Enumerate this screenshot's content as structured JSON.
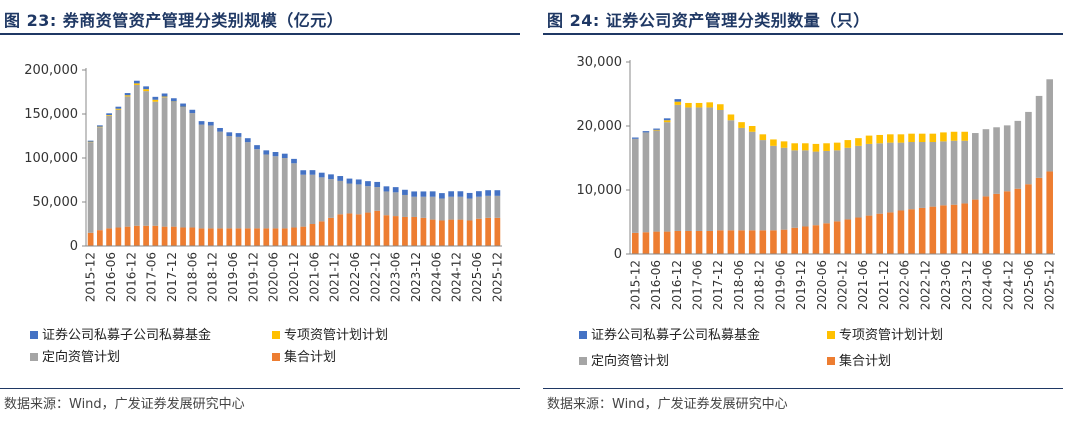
{
  "colors": {
    "private_fund": "#4472c4",
    "special": "#ffc000",
    "directional": "#a5a5a5",
    "collective": "#ed7d31",
    "title": "#1f3864"
  },
  "left": {
    "title": "图 23: 券商资管资产管理分类别规模（亿元）",
    "source": "数据来源：Wind，广发证券发展研究中心",
    "legend": [
      "证券公司私募子公司私募基金",
      "专项资管计划计划",
      "定向资管计划",
      "集合计划"
    ]
  },
  "right": {
    "title": "图 24: 证券公司资产管理分类别数量（只）",
    "source": "数据来源：Wind，广发证券发展研究中心",
    "legend": [
      "证券公司私募子公司私募基金",
      "专项资管计划计划",
      "定向资管计划",
      "集合计划"
    ]
  },
  "chart_data": [
    {
      "type": "bar",
      "stacked": true,
      "title": "图 23: 券商资管资产管理分类别规模（亿元）",
      "ylim": [
        0,
        200000
      ],
      "yticks": [
        0,
        50000,
        100000,
        150000,
        200000
      ],
      "ytick_labels": [
        "0",
        "50,000",
        "100,000",
        "150,000",
        "200,000"
      ],
      "xtick_labels": [
        "2015-12",
        "2016-06",
        "2016-12",
        "2017-06",
        "2017-12",
        "2018-06",
        "2018-12",
        "2019-06",
        "2019-12",
        "2020-06",
        "2020-12",
        "2021-06",
        "2021-12",
        "2022-06",
        "2022-12",
        "2023-06",
        "2023-12",
        "2024-06",
        "2024-12",
        "2025-06",
        "2025-12"
      ],
      "legend_position": "bottom",
      "grid": false,
      "series": [
        {
          "name": "集合计划",
          "color_key": "collective",
          "values": [
            15000,
            18000,
            20000,
            21000,
            22000,
            23000,
            23000,
            23000,
            22000,
            22000,
            21000,
            21000,
            20000,
            20000,
            20000,
            20000,
            20000,
            20000,
            20000,
            20000,
            20000,
            20000,
            21000,
            22000,
            25000,
            28000,
            32000,
            36000,
            37000,
            36000,
            38000,
            40000,
            35000,
            34000,
            33000,
            33000,
            32000,
            30000,
            29000,
            30000,
            30000,
            29000,
            31000,
            32000,
            32000
          ]
        },
        {
          "name": "定向资管计划",
          "color_key": "directional",
          "values": [
            103000,
            117000,
            128000,
            134000,
            148000,
            160000,
            153000,
            141000,
            147000,
            142000,
            137000,
            130000,
            118000,
            117000,
            110000,
            105000,
            104000,
            98000,
            90000,
            84000,
            82000,
            80000,
            73000,
            59000,
            56000,
            50000,
            44000,
            38000,
            34000,
            34000,
            30000,
            27000,
            27000,
            27000,
            25000,
            23000,
            24000,
            26000,
            25000,
            26000,
            26000,
            25000,
            25000,
            25000,
            25000
          ]
        },
        {
          "name": "专项资管计划计划",
          "color_key": "special",
          "values": [
            500,
            600,
            800,
            1000,
            1300,
            1800,
            2200,
            2200,
            800,
            300,
            200,
            0,
            0,
            0,
            0,
            0,
            0,
            0,
            0,
            0,
            0,
            0,
            0,
            0,
            0,
            0,
            0,
            0,
            0,
            0,
            0,
            0,
            0,
            0,
            0,
            0,
            0,
            0,
            0,
            0,
            0,
            0,
            0,
            0,
            0
          ]
        },
        {
          "name": "证券公司私募子公司私募基金",
          "color_key": "private_fund",
          "values": [
            1200,
            1500,
            2000,
            2300,
            2500,
            3000,
            3200,
            3300,
            3500,
            3600,
            3700,
            3800,
            3900,
            4000,
            4100,
            4200,
            4300,
            4500,
            4600,
            4700,
            4800,
            4900,
            5000,
            5100,
            5200,
            5300,
            5400,
            5500,
            5600,
            5600,
            5700,
            5800,
            5800,
            5900,
            5900,
            6000,
            6000,
            6100,
            6100,
            6200,
            6200,
            6300,
            6300,
            6400,
            6400
          ]
        }
      ]
    },
    {
      "type": "bar",
      "stacked": true,
      "title": "图 24: 证券公司资产管理分类别数量（只）",
      "ylim": [
        0,
        30000
      ],
      "yticks": [
        0,
        10000,
        20000,
        30000
      ],
      "ytick_labels": [
        "0",
        "10,000",
        "20,000",
        "30,000"
      ],
      "xtick_labels": [
        "2015-12",
        "2016-06",
        "2016-12",
        "2017-06",
        "2017-12",
        "2018-06",
        "2018-12",
        "2019-06",
        "2019-12",
        "2020-06",
        "2020-12",
        "2021-06",
        "2021-12",
        "2022-06",
        "2022-12",
        "2023-06",
        "2023-12",
        "2024-06",
        "2024-12",
        "2025-06",
        "2025-12"
      ],
      "legend_position": "bottom",
      "grid": false,
      "series": [
        {
          "name": "集合计划",
          "color_key": "collective",
          "values": [
            3300,
            3400,
            3500,
            3500,
            3600,
            3600,
            3600,
            3600,
            3700,
            3700,
            3700,
            3700,
            3700,
            3700,
            3800,
            4100,
            4300,
            4500,
            4800,
            5100,
            5400,
            5700,
            6000,
            6300,
            6500,
            6800,
            7000,
            7200,
            7400,
            7600,
            7700,
            7900,
            8500,
            9000,
            9400,
            9800,
            10200,
            10900,
            11900,
            12900
          ]
        },
        {
          "name": "定向资管计划",
          "color_key": "directional",
          "values": [
            14700,
            15600,
            15800,
            17100,
            19700,
            19300,
            19300,
            19300,
            18800,
            17200,
            16000,
            15400,
            14100,
            13200,
            12800,
            12100,
            11900,
            11500,
            11300,
            11100,
            11200,
            11200,
            11200,
            11000,
            10900,
            10600,
            10500,
            10300,
            10100,
            10000,
            10000,
            9800,
            10400,
            10500,
            10400,
            10300,
            10600,
            11300,
            12800,
            14400
          ]
        },
        {
          "name": "专项资管计划计划",
          "color_key": "special",
          "values": [
            0,
            0,
            100,
            300,
            500,
            700,
            700,
            800,
            900,
            900,
            900,
            900,
            900,
            1000,
            1000,
            1100,
            1100,
            1200,
            1200,
            1200,
            1200,
            1200,
            1300,
            1300,
            1300,
            1300,
            1300,
            1300,
            1300,
            1400,
            1400,
            1400,
            0,
            0,
            0,
            0,
            0,
            0,
            0,
            0
          ]
        },
        {
          "name": "证券公司私募子公司私募基金",
          "color_key": "private_fund",
          "values": [
            200,
            200,
            200,
            300,
            400,
            0,
            0,
            0,
            0,
            0,
            0,
            0,
            0,
            0,
            0,
            0,
            0,
            0,
            0,
            0,
            0,
            0,
            0,
            0,
            0,
            0,
            0,
            0,
            0,
            0,
            0,
            0,
            0,
            0,
            0,
            0,
            0,
            0,
            0,
            0
          ]
        }
      ]
    }
  ]
}
